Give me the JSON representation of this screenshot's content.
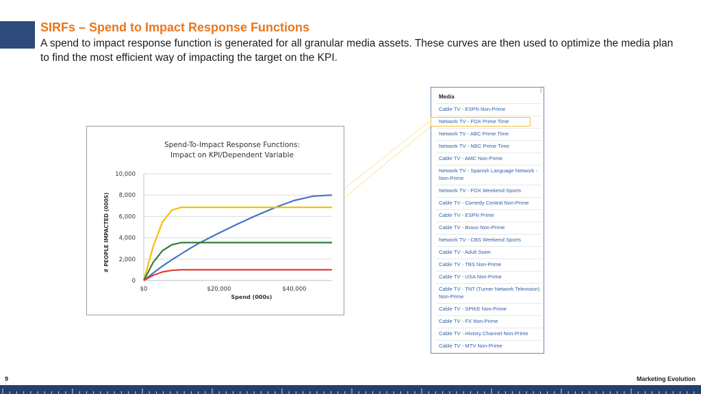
{
  "slide": {
    "title": "SIRFs – Spend to Impact Response Functions",
    "description": "A spend to impact response function is generated for all granular media assets. These curves are then used to optimize the media plan to find the most efficient way of impacting the target on the KPI.",
    "page_number": "9",
    "brand": "Marketing Evolution",
    "colors": {
      "title": "#e8761f",
      "accent": "#2e4a7a",
      "footer": "#24406e"
    }
  },
  "chart_data": {
    "type": "line",
    "title_line1": "Spend-To-Impact Response Functions:",
    "title_line2": "Impact on KPI/Dependent Variable",
    "xlabel": "Spend (000s)",
    "ylabel": "# PEOPLE IMPACTED (000S)",
    "xlim": [
      0,
      50000
    ],
    "ylim": [
      0,
      10000
    ],
    "x_ticks": [
      0,
      20000,
      40000
    ],
    "x_tick_labels": [
      "$0",
      "$20,000",
      "$40,000"
    ],
    "y_ticks": [
      0,
      2000,
      4000,
      6000,
      8000,
      10000
    ],
    "y_tick_labels": [
      "0",
      "2,000",
      "4,000",
      "6,000",
      "8,000",
      "10,000"
    ],
    "grid": true,
    "x": [
      0,
      2500,
      5000,
      7500,
      10000,
      12500,
      15000,
      20000,
      25000,
      30000,
      35000,
      40000,
      45000,
      50000
    ],
    "series": [
      {
        "color": "#4472c4",
        "values": [
          0,
          700,
          1350,
          1950,
          2500,
          3050,
          3550,
          4450,
          5300,
          6100,
          6850,
          7500,
          7900,
          8000
        ]
      },
      {
        "color": "#f2c200",
        "values": [
          0,
          3200,
          5500,
          6600,
          6850,
          6850,
          6850,
          6850,
          6850,
          6850,
          6850,
          6850,
          6850,
          6850
        ]
      },
      {
        "color": "#2e7d32",
        "values": [
          0,
          1700,
          2800,
          3350,
          3550,
          3550,
          3550,
          3550,
          3550,
          3550,
          3550,
          3550,
          3550,
          3550
        ]
      },
      {
        "color": "#e53935",
        "values": [
          0,
          480,
          800,
          950,
          1000,
          1000,
          1000,
          1000,
          1000,
          1000,
          1000,
          1000,
          1000,
          1000
        ]
      }
    ]
  },
  "media": {
    "header": "Media",
    "items": [
      "Cable TV - ESPN Non-Prime",
      "Network TV - FOX Prime Time",
      "Network TV - ABC Prime Time",
      "Network TV - NBC Prime Time",
      "Cable TV - AMC Non-Prime",
      "Network TV - Spanish Language Network - Non-Prime",
      "Network TV - FOX Weekend Sports",
      "Cable TV - Comedy Central Non-Prime",
      "Cable TV - ESPN Prime",
      "Cable TV - Bravo Non-Prime",
      "Network TV - CBS Weekend Sports",
      "Cable TV - Adult Swim",
      "Cable TV - TBS Non-Prime",
      "Cable TV - USA Non-Prime",
      "Cable TV - TNT (Turner Network Television) Non-Prime",
      "Cable TV - SPIKE Non-Prime",
      "Cable TV - FX Non-Prime",
      "Cable TV - History Channel Non-Prime",
      "Cable TV - MTV Non-Prime"
    ],
    "highlighted_item": "Network TV - FOX Prime Time"
  }
}
